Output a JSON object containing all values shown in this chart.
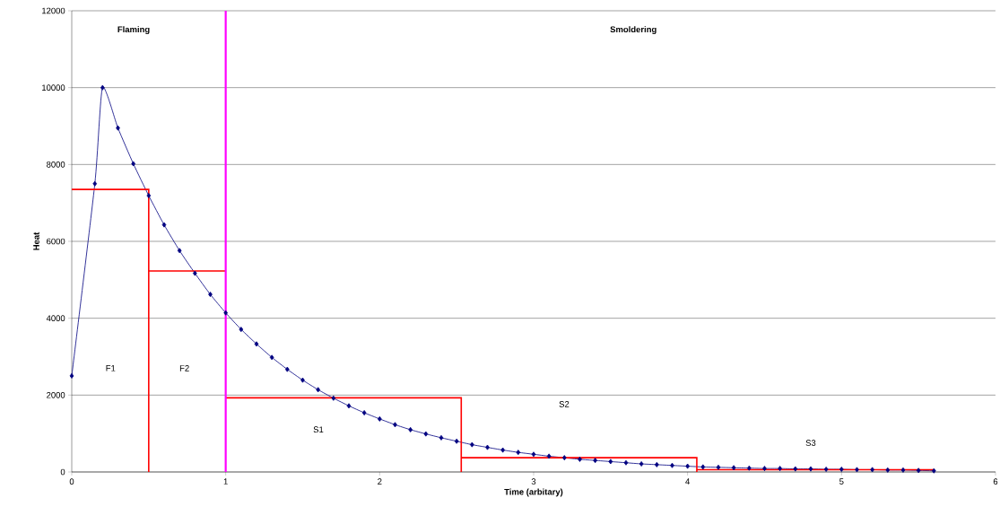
{
  "chart_data": {
    "type": "line",
    "xlabel": "Time (arbitary)",
    "ylabel": "Heat",
    "xlim": [
      0,
      6
    ],
    "xticks": [
      0,
      1,
      2,
      3,
      4,
      5,
      6
    ],
    "ylim": [
      0,
      12000
    ],
    "yticks": [
      0,
      2000,
      4000,
      6000,
      8000,
      10000,
      12000
    ],
    "grid": "y",
    "legend": false,
    "marker": "diamond",
    "line_style": "solid",
    "series": [
      {
        "color": "#000080",
        "x": [
          0,
          0.15,
          0.2,
          0.3,
          0.4,
          0.5,
          0.6,
          0.7,
          0.8,
          0.9,
          1.0,
          1.1,
          1.2,
          1.3,
          1.4,
          1.5,
          1.6,
          1.7,
          1.8,
          1.9,
          2.0,
          2.1,
          2.2,
          2.3,
          2.4,
          2.5,
          2.6,
          2.7,
          2.8,
          2.9,
          3.0,
          3.1,
          3.2,
          3.3,
          3.4,
          3.5,
          3.6,
          3.7,
          3.8,
          3.9,
          4.0,
          4.1,
          4.2,
          4.3,
          4.4,
          4.5,
          4.6,
          4.7,
          4.8,
          4.9,
          5.0,
          5.1,
          5.2,
          5.3,
          5.4,
          5.5,
          5.6
        ],
        "values": [
          2500,
          7500,
          10000,
          8950,
          8020,
          7190,
          6430,
          5760,
          5170,
          4620,
          4140,
          3710,
          3330,
          2980,
          2670,
          2390,
          2140,
          1920,
          1720,
          1540,
          1380,
          1230,
          1100,
          990,
          890,
          800,
          710,
          640,
          570,
          510,
          460,
          410,
          370,
          330,
          300,
          270,
          240,
          210,
          190,
          170,
          150,
          130,
          120,
          110,
          100,
          90,
          90,
          80,
          80,
          70,
          70,
          60,
          60,
          50,
          50,
          40,
          30
        ]
      },
      {
        "color": "#ff0000",
        "marker": "none",
        "x": [
          0,
          0.5,
          0.5
        ],
        "values": [
          7350,
          7350,
          0
        ]
      },
      {
        "color": "#ff0000",
        "marker": "none",
        "x": [
          0.5,
          1
        ],
        "values": [
          5230,
          5230
        ]
      },
      {
        "color": "#ff0000",
        "marker": "none",
        "x": [
          1,
          2.53,
          2.53
        ],
        "values": [
          1930,
          1930,
          0
        ]
      },
      {
        "color": "#ff0000",
        "marker": "none",
        "x": [
          2.53,
          4.06,
          4.06
        ],
        "values": [
          370,
          370,
          0
        ]
      },
      {
        "color": "#ff0000",
        "marker": "none",
        "x": [
          4.06,
          5.6
        ],
        "values": [
          60,
          60
        ]
      }
    ],
    "ref_lines": [
      {
        "axis": "x",
        "value": 1,
        "color": "#ff00ff"
      }
    ],
    "annotations": [
      "Flaming",
      "Smoldering",
      "F1",
      "F2",
      "S1",
      "S2",
      "S3"
    ]
  }
}
